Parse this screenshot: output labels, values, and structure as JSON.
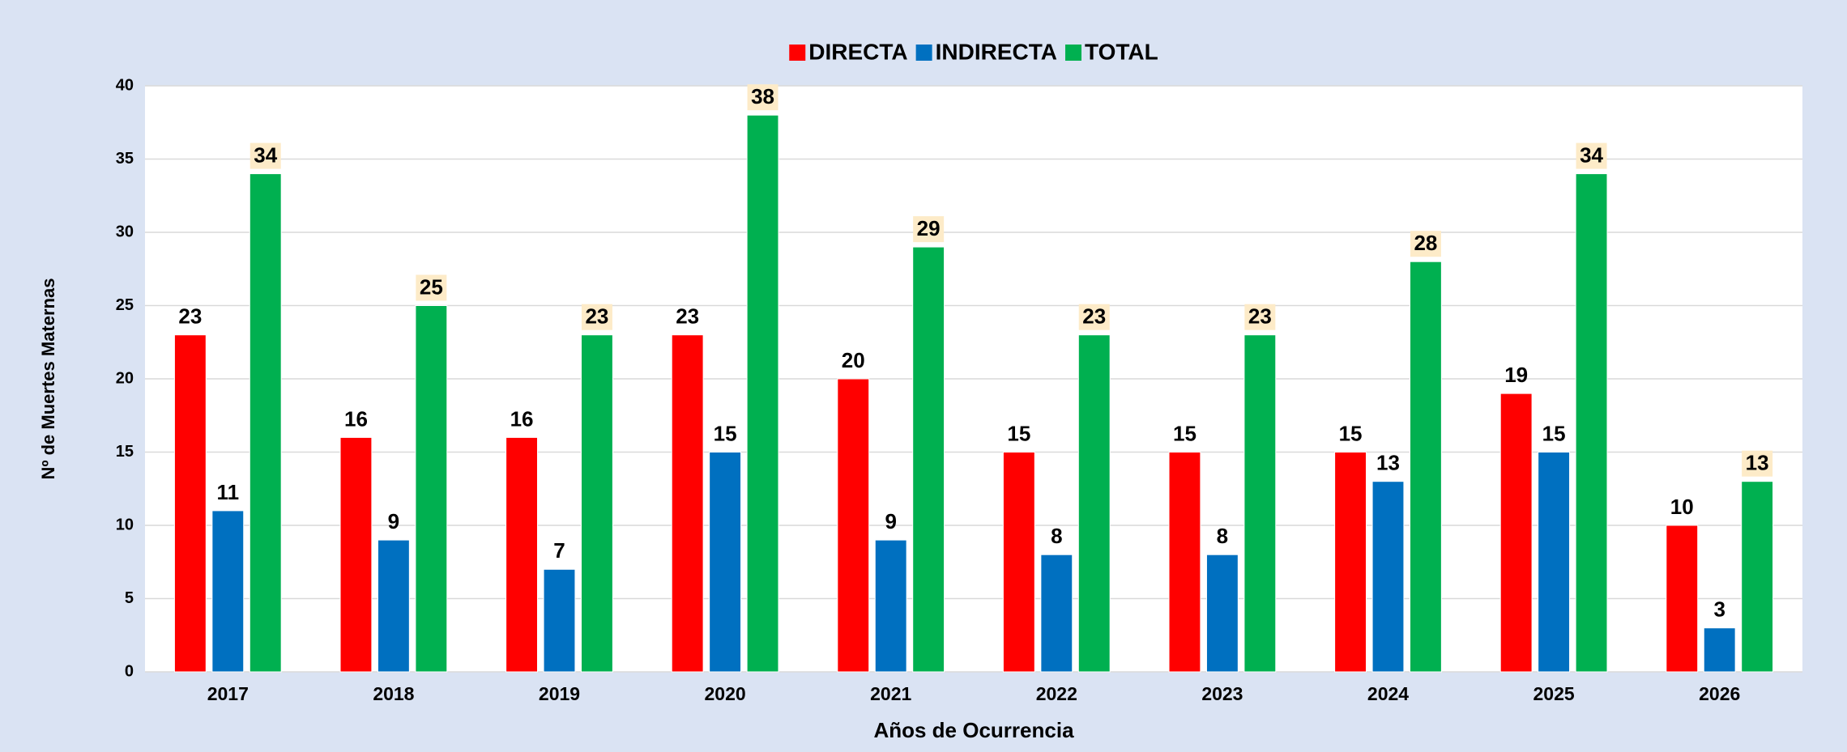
{
  "chart_data": {
    "type": "bar",
    "x_label": "Años de Ocurrencia",
    "y_label": "Nº de Muertes Maternas",
    "categories": [
      "2017",
      "2018",
      "2019",
      "2020",
      "2021",
      "2022",
      "2023",
      "2024",
      "2025",
      "2026"
    ],
    "series": [
      {
        "name": "DIRECTA",
        "color": "#ff0000",
        "values": [
          23,
          16,
          16,
          23,
          20,
          15,
          15,
          15,
          19,
          10
        ]
      },
      {
        "name": "INDIRECTA",
        "color": "#0070c0",
        "values": [
          11,
          9,
          7,
          15,
          9,
          8,
          8,
          13,
          15,
          3
        ]
      },
      {
        "name": "TOTAL",
        "color": "#00b050",
        "values": [
          34,
          25,
          23,
          38,
          29,
          23,
          23,
          28,
          34,
          13
        ]
      }
    ],
    "ylim": [
      0,
      40
    ],
    "yticks": [
      0,
      5,
      10,
      15,
      20,
      25,
      30,
      35,
      40
    ],
    "grid": true,
    "legend": "top"
  }
}
